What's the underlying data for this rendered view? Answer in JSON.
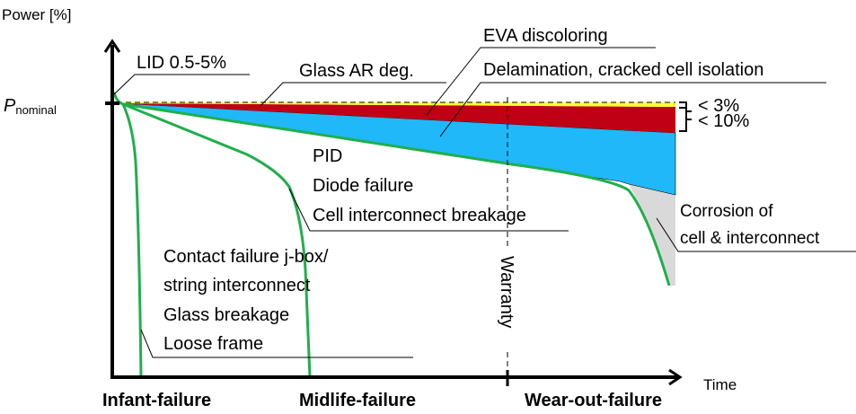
{
  "axes": {
    "y_label": "Power [%]",
    "x_label": "Time",
    "p_nominal_main": "P",
    "p_nominal_sub": "nominal"
  },
  "annotations": {
    "lid": "LID 0.5-5%",
    "glass_ar": "Glass AR deg.",
    "eva": "EVA discoloring",
    "delamination": "Delamination, cracked cell isolation",
    "midlife_causes": [
      "PID",
      "Diode failure",
      "Cell interconnect breakage"
    ],
    "corrosion": [
      "Corrosion of",
      "cell & interconnect"
    ],
    "infant_causes": [
      "Contact failure j-box/",
      "string interconnect",
      "Glass breakage",
      "Loose frame"
    ],
    "lt3": "< 3%",
    "lt10": "< 10%",
    "warranty": "Warranty"
  },
  "phases": [
    "Infant-failure",
    "Midlife-failure",
    "Wear-out-failure"
  ],
  "colors": {
    "glass_ar": "#ffff33",
    "eva": "#c00014",
    "delamination": "#20b8f8",
    "corrosion": "#d9d9d9",
    "curve": "#1faf4b"
  }
}
